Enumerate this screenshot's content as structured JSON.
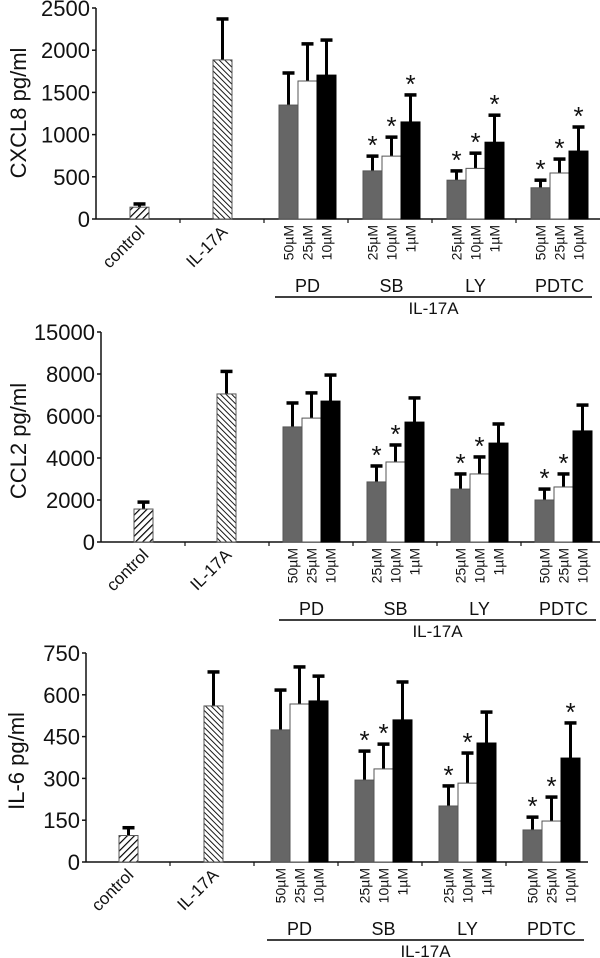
{
  "chart_data": [
    {
      "type": "bar",
      "title": "",
      "ylabel": "CXCL8 pg/ml",
      "xlabel": "",
      "ylim": [
        0,
        2500
      ],
      "yticks": [
        "0",
        "500",
        "1000",
        "1500",
        "2000",
        "2500"
      ],
      "ytick_values": [
        0,
        500,
        1000,
        1500,
        2000,
        2500
      ],
      "axis_break": false,
      "grid": false,
      "group_bracket_label": "IL-17A",
      "single_bars": [
        {
          "label": "control",
          "value": 140,
          "error": 38,
          "pattern": "hatch-right",
          "significant": false
        },
        {
          "label": "IL-17A",
          "value": 1885,
          "error": 485,
          "pattern": "hatch-left",
          "significant": false
        }
      ],
      "groups": [
        {
          "label": "PD",
          "bars": [
            {
              "dose": "50µM",
              "value": 1350,
              "error": 380,
              "fill": "gray",
              "significant": false
            },
            {
              "dose": "25µM",
              "value": 1635,
              "error": 440,
              "fill": "white",
              "significant": false
            },
            {
              "dose": "10µM",
              "value": 1705,
              "error": 415,
              "fill": "black",
              "significant": false
            }
          ]
        },
        {
          "label": "SB",
          "bars": [
            {
              "dose": "25µM",
              "value": 570,
              "error": 175,
              "fill": "gray",
              "significant": true
            },
            {
              "dose": "10µM",
              "value": 745,
              "error": 225,
              "fill": "white",
              "significant": true
            },
            {
              "dose": "1µM",
              "value": 1150,
              "error": 320,
              "fill": "black",
              "significant": true
            }
          ]
        },
        {
          "label": "LY",
          "bars": [
            {
              "dose": "25µM",
              "value": 460,
              "error": 110,
              "fill": "gray",
              "significant": true
            },
            {
              "dose": "10µM",
              "value": 600,
              "error": 180,
              "fill": "white",
              "significant": true
            },
            {
              "dose": "1µM",
              "value": 910,
              "error": 320,
              "fill": "black",
              "significant": true
            }
          ]
        },
        {
          "label": "PDTC",
          "bars": [
            {
              "dose": "50µM",
              "value": 370,
              "error": 90,
              "fill": "gray",
              "significant": true
            },
            {
              "dose": "25µM",
              "value": 545,
              "error": 165,
              "fill": "white",
              "significant": true
            },
            {
              "dose": "10µM",
              "value": 805,
              "error": 285,
              "fill": "black",
              "significant": true
            }
          ]
        }
      ],
      "significance_marker": "*"
    },
    {
      "type": "bar",
      "title": "",
      "ylabel": "CCL2 pg/ml",
      "xlabel": "",
      "ylim": [
        0,
        15000
      ],
      "yticks": [
        "0",
        "2000",
        "4000",
        "6000",
        "8000",
        "15000"
      ],
      "ytick_values": [
        0,
        2000,
        4000,
        6000,
        8000,
        15000
      ],
      "axis_break": true,
      "grid": false,
      "group_bracket_label": "IL-17A",
      "single_bars": [
        {
          "label": "control",
          "value": 1570,
          "error": 330,
          "pattern": "hatch-right",
          "significant": false
        },
        {
          "label": "IL-17A",
          "value": 7050,
          "error": 1380,
          "pattern": "hatch-left",
          "significant": false
        }
      ],
      "groups": [
        {
          "label": "PD",
          "bars": [
            {
              "dose": "50µM",
              "value": 5480,
              "error": 1140,
              "fill": "gray",
              "significant": false
            },
            {
              "dose": "25µM",
              "value": 5900,
              "error": 1200,
              "fill": "white",
              "significant": false
            },
            {
              "dose": "10µM",
              "value": 6710,
              "error": 1240,
              "fill": "black",
              "significant": false
            }
          ]
        },
        {
          "label": "SB",
          "bars": [
            {
              "dose": "25µM",
              "value": 2860,
              "error": 760,
              "fill": "gray",
              "significant": true
            },
            {
              "dose": "10µM",
              "value": 3810,
              "error": 810,
              "fill": "white",
              "significant": true
            },
            {
              "dose": "1µM",
              "value": 5710,
              "error": 1150,
              "fill": "black",
              "significant": false
            }
          ]
        },
        {
          "label": "LY",
          "bars": [
            {
              "dose": "25µM",
              "value": 2520,
              "error": 720,
              "fill": "gray",
              "significant": true
            },
            {
              "dose": "10µM",
              "value": 3240,
              "error": 810,
              "fill": "white",
              "significant": true
            },
            {
              "dose": "1µM",
              "value": 4710,
              "error": 910,
              "fill": "black",
              "significant": false
            }
          ]
        },
        {
          "label": "PDTC",
          "bars": [
            {
              "dose": "50µM",
              "value": 2000,
              "error": 520,
              "fill": "gray",
              "significant": true
            },
            {
              "dose": "25µM",
              "value": 2620,
              "error": 620,
              "fill": "white",
              "significant": true
            },
            {
              "dose": "10µM",
              "value": 5290,
              "error": 1230,
              "fill": "black",
              "significant": false
            }
          ]
        }
      ],
      "significance_marker": "*"
    },
    {
      "type": "bar",
      "title": "",
      "ylabel": "IL-6 pg/ml",
      "xlabel": "",
      "ylim": [
        0,
        750
      ],
      "yticks": [
        "0",
        "150",
        "300",
        "450",
        "600",
        "750"
      ],
      "ytick_values": [
        0,
        150,
        300,
        450,
        600,
        750
      ],
      "axis_break": false,
      "grid": false,
      "group_bracket_label": "IL-17A",
      "single_bars": [
        {
          "label": "control",
          "value": 95,
          "error": 28,
          "pattern": "hatch-right",
          "significant": false
        },
        {
          "label": "IL-17A",
          "value": 560,
          "error": 122,
          "pattern": "hatch-left",
          "significant": false
        }
      ],
      "groups": [
        {
          "label": "PD",
          "bars": [
            {
              "dose": "50µM",
              "value": 474,
              "error": 143,
              "fill": "gray",
              "significant": false
            },
            {
              "dose": "25µM",
              "value": 567,
              "error": 133,
              "fill": "white",
              "significant": false
            },
            {
              "dose": "10µM",
              "value": 578,
              "error": 89,
              "fill": "black",
              "significant": false
            }
          ]
        },
        {
          "label": "SB",
          "bars": [
            {
              "dose": "25µM",
              "value": 294,
              "error": 104,
              "fill": "gray",
              "significant": true
            },
            {
              "dose": "10µM",
              "value": 334,
              "error": 89,
              "fill": "white",
              "significant": true
            },
            {
              "dose": "1µM",
              "value": 510,
              "error": 136,
              "fill": "black",
              "significant": false
            }
          ]
        },
        {
          "label": "LY",
          "bars": [
            {
              "dose": "25µM",
              "value": 201,
              "error": 72,
              "fill": "gray",
              "significant": true
            },
            {
              "dose": "10µM",
              "value": 283,
              "error": 108,
              "fill": "white",
              "significant": true
            },
            {
              "dose": "1µM",
              "value": 427,
              "error": 111,
              "fill": "black",
              "significant": false
            }
          ]
        },
        {
          "label": "PDTC",
          "bars": [
            {
              "dose": "50µM",
              "value": 115,
              "error": 46,
              "fill": "gray",
              "significant": true
            },
            {
              "dose": "25µM",
              "value": 147,
              "error": 86,
              "fill": "white",
              "significant": true
            },
            {
              "dose": "10µM",
              "value": 373,
              "error": 126,
              "fill": "black",
              "significant": true
            }
          ]
        }
      ],
      "significance_marker": "*"
    }
  ],
  "colors": {
    "gray": "#666666",
    "white": "#ffffff",
    "black": "#000000",
    "axis": "#111111"
  }
}
